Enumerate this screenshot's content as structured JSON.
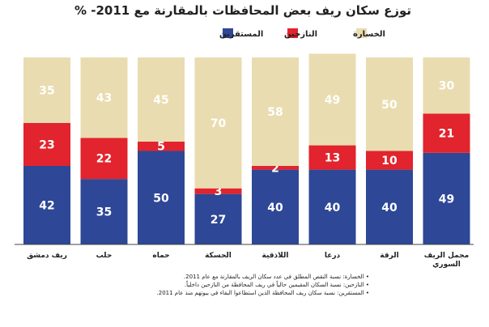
{
  "chart_data": {
    "type": "bar",
    "stacked": true,
    "orientation": "vertical",
    "title": "توزع سكان ريف بعض المحافظات بالمقارنة مع 2011- %",
    "categories": [
      "ريف دمشق",
      "حلب",
      "حماه",
      "الحسكة",
      "اللاذقية",
      "درعا",
      "الرقة",
      "مجمل الريف السوري"
    ],
    "series": [
      {
        "name": "المستقرين",
        "values": [
          42,
          35,
          50,
          27,
          40,
          40,
          40,
          49
        ]
      },
      {
        "name": "النازحين",
        "values": [
          23,
          22,
          5,
          3,
          2,
          13,
          10,
          21
        ]
      },
      {
        "name": "الخسارة",
        "values": [
          35,
          43,
          45,
          70,
          58,
          49,
          50,
          30
        ]
      }
    ],
    "ylim": [
      0,
      100
    ],
    "grid": false,
    "legend_position": "top",
    "colors": {
      "المستقرين": "#2e4796",
      "النازحين": "#e1242d",
      "الخسارة": "#e9dcb0"
    }
  },
  "notes": [
    "• الخسارة: نسبة النقص المطلق في عدد سكان الريف بالمقارنة مع عام 2011.",
    "• النازحين: نسبة السكان المقيمين حالياً في ريف المحافظة من النازحين داخلياً.",
    "• المستقرين: نسبة سكان ريف المحافظة الذين استطاعوا البقاء في بيوتهم منذ عام 2011."
  ]
}
